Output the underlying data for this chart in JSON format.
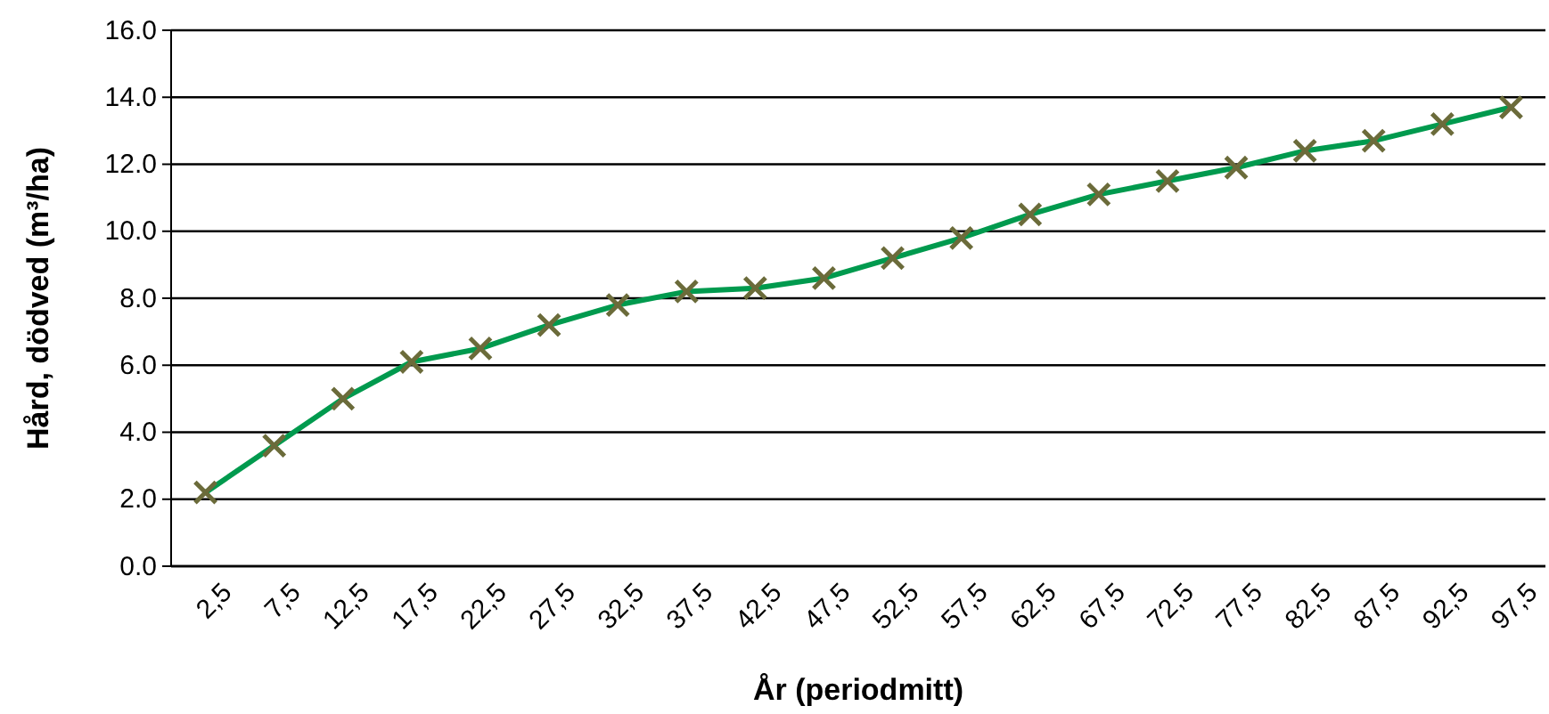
{
  "chart_data": {
    "type": "line",
    "xlabel": "År (periodmitt)",
    "ylabel": "Hård, dödved (m³/ha)",
    "categories": [
      "2,5",
      "7,5",
      "12,5",
      "17,5",
      "22,5",
      "27,5",
      "32,5",
      "37,5",
      "42,5",
      "47,5",
      "52,5",
      "57,5",
      "62,5",
      "67,5",
      "72,5",
      "77,5",
      "82,5",
      "87,5",
      "92,5",
      "97,5"
    ],
    "series": [
      {
        "color": "#009a4e",
        "values": [
          2.2,
          3.6,
          5.0,
          6.1,
          6.5,
          7.2,
          7.8,
          8.2,
          8.3,
          8.6,
          9.2,
          9.8,
          10.5,
          11.1,
          11.5,
          11.9,
          12.4,
          12.7,
          13.2,
          13.7
        ]
      }
    ],
    "ylim": [
      0,
      16
    ],
    "yticks": [
      {
        "value": 0,
        "label": "0.0"
      },
      {
        "value": 2,
        "label": "2.0"
      },
      {
        "value": 4,
        "label": "4.0"
      },
      {
        "value": 6,
        "label": "6.0"
      },
      {
        "value": 8,
        "label": "8.0"
      },
      {
        "value": 10,
        "label": "10.0"
      },
      {
        "value": 12,
        "label": "12.0"
      },
      {
        "value": 14,
        "label": "14.0"
      },
      {
        "value": 16,
        "label": "16.0"
      }
    ],
    "grid": "y",
    "marker": "cross",
    "line_style": "solid",
    "legend": false
  }
}
